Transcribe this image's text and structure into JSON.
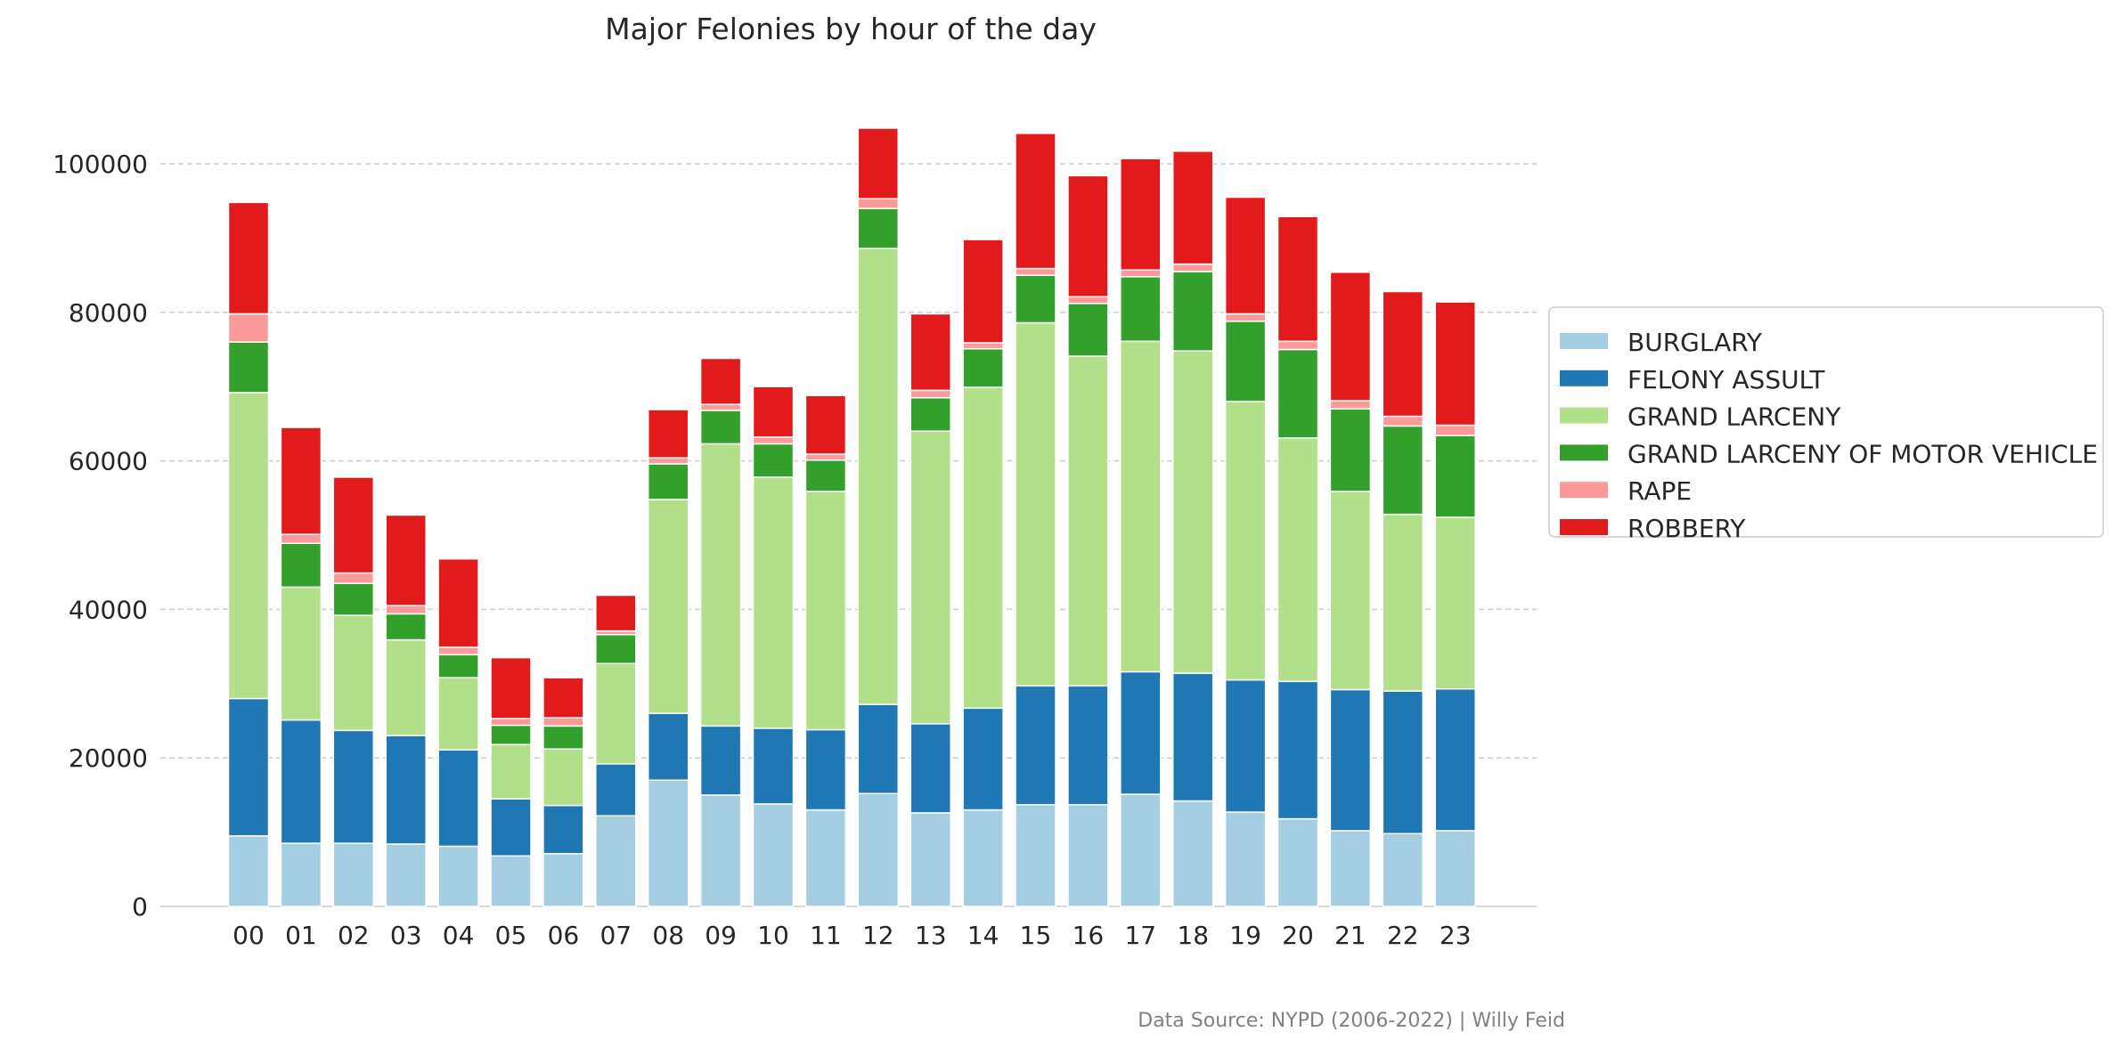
{
  "chart_data": {
    "type": "bar",
    "stacked": true,
    "title": "Major Felonies by hour of the day",
    "xlabel": "",
    "ylabel": "",
    "ylim": [
      0,
      110000
    ],
    "yticks": [
      0,
      20000,
      40000,
      60000,
      80000,
      100000
    ],
    "grid": "horizontal dashed",
    "legend_position": "right",
    "categories": [
      "00",
      "01",
      "02",
      "03",
      "04",
      "05",
      "06",
      "07",
      "08",
      "09",
      "10",
      "11",
      "12",
      "13",
      "14",
      "15",
      "16",
      "17",
      "18",
      "19",
      "20",
      "21",
      "22",
      "23"
    ],
    "series": [
      {
        "name": "BURGLARY",
        "color": "#a6cee3",
        "values": [
          9500,
          8500,
          8500,
          8400,
          8100,
          6800,
          7100,
          12200,
          17000,
          15000,
          13800,
          13000,
          15200,
          12600,
          13000,
          13700,
          13700,
          15100,
          14200,
          12700,
          11800,
          10200,
          9800,
          10200
        ]
      },
      {
        "name": "FELONY ASSULT",
        "color": "#1f78b4",
        "values": [
          18500,
          16600,
          15200,
          14600,
          13000,
          7700,
          6500,
          7000,
          9000,
          9300,
          10200,
          10800,
          12000,
          12000,
          13700,
          16000,
          16000,
          16500,
          17200,
          17800,
          18500,
          19000,
          19200,
          19100
        ]
      },
      {
        "name": "GRAND LARCENY",
        "color": "#b2df8a",
        "values": [
          41200,
          17900,
          15500,
          12900,
          9700,
          7300,
          7600,
          13500,
          28800,
          38000,
          33800,
          32100,
          61400,
          39400,
          43200,
          48900,
          44400,
          44500,
          43400,
          37500,
          32800,
          26700,
          23800,
          23100
        ]
      },
      {
        "name": "GRAND LARCENY OF MOTOR VEHICLE",
        "color": "#33a02c",
        "values": [
          6800,
          5900,
          4300,
          3500,
          3100,
          2600,
          3100,
          3900,
          4800,
          4500,
          4500,
          4200,
          5400,
          4500,
          5200,
          6400,
          7100,
          8700,
          10700,
          10800,
          11900,
          11100,
          11900,
          11000
        ]
      },
      {
        "name": "RAPE",
        "color": "#fb9a99",
        "values": [
          3800,
          1200,
          1400,
          1100,
          1000,
          900,
          1100,
          500,
          800,
          800,
          900,
          800,
          1300,
          1000,
          800,
          900,
          900,
          900,
          1000,
          1000,
          1100,
          1100,
          1300,
          1400
        ]
      },
      {
        "name": "ROBBERY",
        "color": "#e31a1c",
        "values": [
          15000,
          14400,
          12900,
          12200,
          11900,
          8200,
          5400,
          4800,
          6500,
          6200,
          6800,
          7900,
          9500,
          10300,
          13900,
          18200,
          16300,
          15000,
          15200,
          15700,
          16800,
          17300,
          16800,
          16600
        ]
      }
    ]
  },
  "source_note": "Data Source: NYPD (2006-2022) | Willy Feid"
}
